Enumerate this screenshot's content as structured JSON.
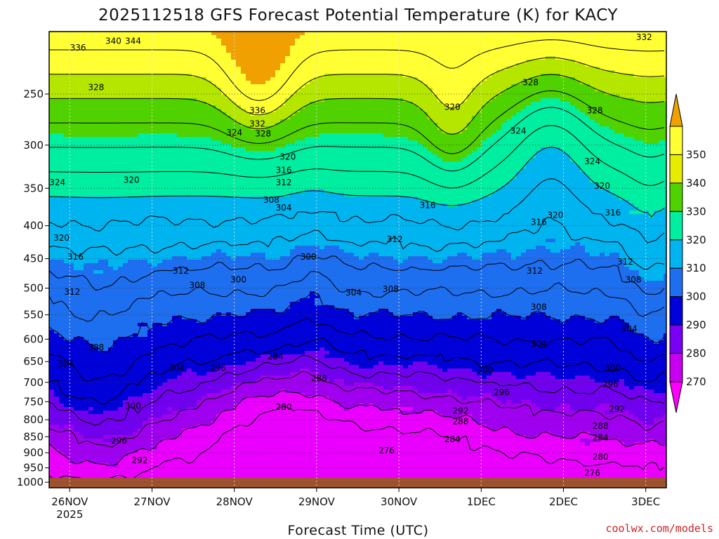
{
  "chart_data": {
    "type": "heatmap",
    "title": "2025112518 GFS Forecast Potential Temperature (K) for KACY",
    "xlabel": "Forecast Time (UTC)",
    "ylabel": "",
    "credit": "coolwx.com/models",
    "x_ticks": [
      {
        "label": "26NOV",
        "sublabel": "2025",
        "day": 0.25
      },
      {
        "label": "27NOV",
        "sublabel": "",
        "day": 1.25
      },
      {
        "label": "28NOV",
        "sublabel": "",
        "day": 2.25
      },
      {
        "label": "29NOV",
        "sublabel": "",
        "day": 3.25
      },
      {
        "label": "30NOV",
        "sublabel": "",
        "day": 4.25
      },
      {
        "label": "1DEC",
        "sublabel": "",
        "day": 5.25
      },
      {
        "label": "2DEC",
        "sublabel": "",
        "day": 6.25
      },
      {
        "label": "3DEC",
        "sublabel": "",
        "day": 7.25
      }
    ],
    "xlim": [
      0,
      7.5
    ],
    "y_ticks": [
      250,
      300,
      350,
      400,
      450,
      500,
      550,
      600,
      650,
      700,
      750,
      800,
      850,
      900,
      950,
      1000
    ],
    "ylim": [
      200,
      1020
    ],
    "y_scale": "log",
    "colorbar": {
      "levels": [
        "270",
        "280",
        "290",
        "300",
        "310",
        "320",
        "330",
        "340",
        "350"
      ],
      "colors": [
        "#ff00ff",
        "#c800f0",
        "#7a00f5",
        "#0000d8",
        "#1e6ef0",
        "#00b4f0",
        "#00eea0",
        "#50d200",
        "#e6ec00",
        "#ffff33",
        "#f0a000"
      ]
    },
    "fill_colors": [
      {
        "min": 270,
        "color": "#ea00ff"
      },
      {
        "min": 280,
        "color": "#a000f0"
      },
      {
        "min": 285,
        "color": "#7000ee"
      },
      {
        "min": 290,
        "color": "#0000d8"
      },
      {
        "min": 300,
        "color": "#1e6ef0"
      },
      {
        "min": 310,
        "color": "#00b4f0"
      },
      {
        "min": 320,
        "color": "#00eea0"
      },
      {
        "min": 330,
        "color": "#50d200"
      },
      {
        "min": 336,
        "color": "#b4e600"
      },
      {
        "min": 340,
        "color": "#ffff33"
      },
      {
        "min": 348,
        "color": "#f0a000"
      }
    ],
    "contour_levels": [
      276,
      280,
      284,
      288,
      292,
      296,
      300,
      304,
      308,
      312,
      316,
      320,
      324,
      328,
      332,
      336,
      340,
      344
    ],
    "surface_color": "#a0522d",
    "contour_labels": [
      {
        "text": "340",
        "day": 0.78,
        "p": 207
      },
      {
        "text": "344",
        "day": 1.02,
        "p": 207
      },
      {
        "text": "336",
        "day": 0.35,
        "p": 212
      },
      {
        "text": "332",
        "day": 7.23,
        "p": 204
      },
      {
        "text": "328",
        "day": 0.57,
        "p": 244
      },
      {
        "text": "328",
        "day": 5.85,
        "p": 240
      },
      {
        "text": "328",
        "day": 6.63,
        "p": 265
      },
      {
        "text": "336",
        "day": 2.53,
        "p": 265
      },
      {
        "text": "332",
        "day": 2.53,
        "p": 278
      },
      {
        "text": "328",
        "day": 2.6,
        "p": 288
      },
      {
        "text": "324",
        "day": 2.25,
        "p": 287
      },
      {
        "text": "324",
        "day": 5.7,
        "p": 285
      },
      {
        "text": "324",
        "day": 6.6,
        "p": 318
      },
      {
        "text": "320",
        "day": 4.9,
        "p": 262
      },
      {
        "text": "320",
        "day": 2.9,
        "p": 313
      },
      {
        "text": "320",
        "day": 1.0,
        "p": 340
      },
      {
        "text": "320",
        "day": 6.72,
        "p": 347
      },
      {
        "text": "320",
        "day": 6.15,
        "p": 385
      },
      {
        "text": "320",
        "day": 0.15,
        "p": 418
      },
      {
        "text": "324",
        "day": 0.1,
        "p": 343
      },
      {
        "text": "316",
        "day": 2.85,
        "p": 328
      },
      {
        "text": "312",
        "day": 2.85,
        "p": 343
      },
      {
        "text": "308",
        "day": 2.7,
        "p": 365
      },
      {
        "text": "304",
        "day": 2.85,
        "p": 375
      },
      {
        "text": "316",
        "day": 4.6,
        "p": 372
      },
      {
        "text": "316",
        "day": 5.95,
        "p": 395
      },
      {
        "text": "316",
        "day": 6.85,
        "p": 382
      },
      {
        "text": "312",
        "day": 4.2,
        "p": 420
      },
      {
        "text": "312",
        "day": 5.9,
        "p": 470
      },
      {
        "text": "312",
        "day": 7.0,
        "p": 455
      },
      {
        "text": "312",
        "day": 1.6,
        "p": 470
      },
      {
        "text": "312",
        "day": 0.28,
        "p": 507
      },
      {
        "text": "316",
        "day": 0.32,
        "p": 447
      },
      {
        "text": "300",
        "day": 3.15,
        "p": 447
      },
      {
        "text": "300",
        "day": 2.3,
        "p": 485
      },
      {
        "text": "308",
        "day": 1.8,
        "p": 495
      },
      {
        "text": "304",
        "day": 3.7,
        "p": 508
      },
      {
        "text": "308",
        "day": 4.15,
        "p": 502
      },
      {
        "text": "308",
        "day": 5.95,
        "p": 535
      },
      {
        "text": "308",
        "day": 7.1,
        "p": 485
      },
      {
        "text": "304",
        "day": 5.95,
        "p": 610
      },
      {
        "text": "304",
        "day": 7.05,
        "p": 578
      },
      {
        "text": "308",
        "day": 0.57,
        "p": 618
      },
      {
        "text": "304",
        "day": 0.2,
        "p": 655
      },
      {
        "text": "304",
        "day": 1.55,
        "p": 665
      },
      {
        "text": "296",
        "day": 2.05,
        "p": 665
      },
      {
        "text": "284",
        "day": 2.75,
        "p": 638
      },
      {
        "text": "288",
        "day": 3.28,
        "p": 690
      },
      {
        "text": "300",
        "day": 5.3,
        "p": 670
      },
      {
        "text": "300",
        "day": 6.85,
        "p": 665
      },
      {
        "text": "296",
        "day": 5.5,
        "p": 725
      },
      {
        "text": "296",
        "day": 6.82,
        "p": 705
      },
      {
        "text": "300",
        "day": 1.02,
        "p": 762
      },
      {
        "text": "292",
        "day": 5.0,
        "p": 775
      },
      {
        "text": "292",
        "day": 6.9,
        "p": 770
      },
      {
        "text": "288",
        "day": 5.0,
        "p": 805
      },
      {
        "text": "288",
        "day": 6.7,
        "p": 818
      },
      {
        "text": "284",
        "day": 6.7,
        "p": 853
      },
      {
        "text": "284",
        "day": 4.9,
        "p": 858
      },
      {
        "text": "280",
        "day": 2.85,
        "p": 765
      },
      {
        "text": "276",
        "day": 4.1,
        "p": 893
      },
      {
        "text": "280",
        "day": 6.7,
        "p": 913
      },
      {
        "text": "276",
        "day": 6.6,
        "p": 968
      },
      {
        "text": "296",
        "day": 0.85,
        "p": 862
      },
      {
        "text": "292",
        "day": 1.1,
        "p": 925
      }
    ]
  }
}
